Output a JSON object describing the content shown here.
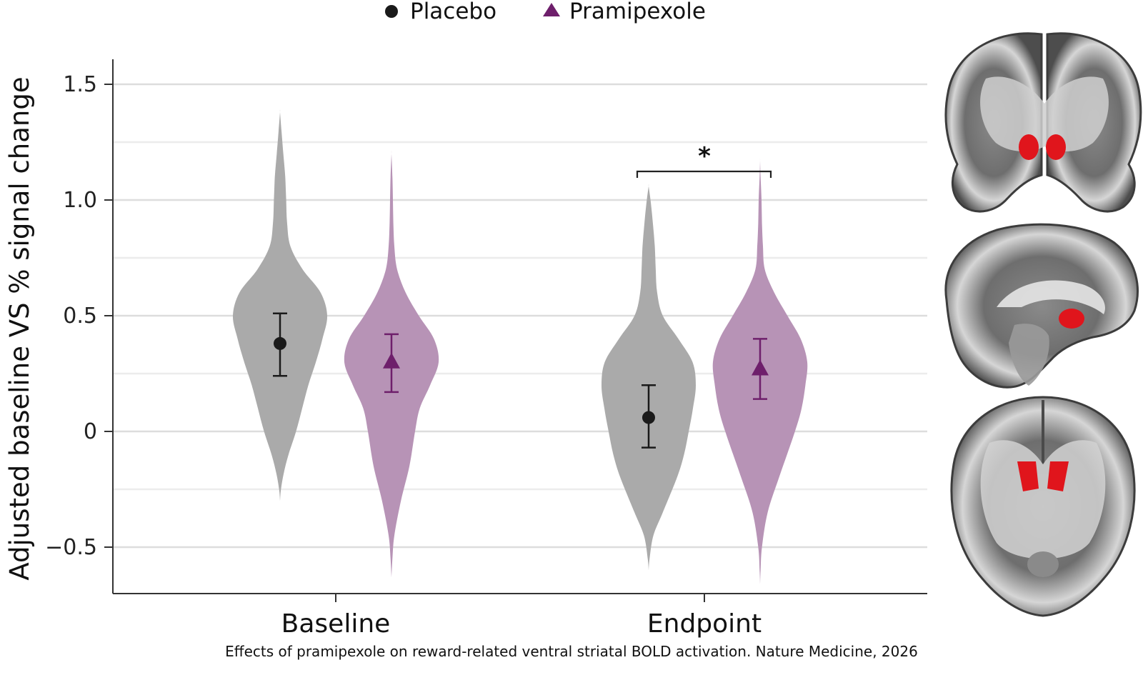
{
  "chart_data": {
    "type": "violin",
    "legend": {
      "position": "top-center",
      "items": [
        {
          "label": "Placebo",
          "marker": "circle",
          "color": "#1a1a1a"
        },
        {
          "label": "Pramipexole",
          "marker": "triangle",
          "color": "#6e1f6b"
        }
      ]
    },
    "ylabel": "Adjusted baseline VS % signal change",
    "ylim": [
      -0.68,
      1.6
    ],
    "yticks": [
      {
        "value": 1.5,
        "label": "1.5"
      },
      {
        "value": 1.0,
        "label": "1.0"
      },
      {
        "value": 0.5,
        "label": "0.5"
      },
      {
        "value": 0,
        "label": "0"
      },
      {
        "value": -0.5,
        "label": "−0.5"
      }
    ],
    "grid": true,
    "categories": [
      "Baseline",
      "Endpoint"
    ],
    "series": [
      {
        "name": "Placebo",
        "fill": "#aaaaaa",
        "marker": "circle",
        "marker_color": "#1a1a1a",
        "groups": [
          {
            "category": "Baseline",
            "mean": 0.38,
            "ci": [
              0.24,
              0.51
            ],
            "density": [
              [
                -0.3,
                0.0
              ],
              [
                -0.25,
                0.02
              ],
              [
                -0.18,
                0.08
              ],
              [
                -0.1,
                0.18
              ],
              [
                0.0,
                0.34
              ],
              [
                0.1,
                0.47
              ],
              [
                0.2,
                0.6
              ],
              [
                0.3,
                0.76
              ],
              [
                0.4,
                0.9
              ],
              [
                0.5,
                1.0
              ],
              [
                0.6,
                0.86
              ],
              [
                0.7,
                0.48
              ],
              [
                0.8,
                0.22
              ],
              [
                0.9,
                0.15
              ],
              [
                1.0,
                0.13
              ],
              [
                1.1,
                0.11
              ],
              [
                1.2,
                0.07
              ],
              [
                1.3,
                0.03
              ],
              [
                1.38,
                0.0
              ]
            ]
          },
          {
            "category": "Endpoint",
            "mean": 0.06,
            "ci": [
              -0.07,
              0.2
            ],
            "density": [
              [
                -0.6,
                0.0
              ],
              [
                -0.55,
                0.02
              ],
              [
                -0.45,
                0.1
              ],
              [
                -0.35,
                0.3
              ],
              [
                -0.2,
                0.6
              ],
              [
                -0.1,
                0.75
              ],
              [
                0.0,
                0.85
              ],
              [
                0.1,
                0.94
              ],
              [
                0.2,
                1.0
              ],
              [
                0.3,
                0.93
              ],
              [
                0.4,
                0.63
              ],
              [
                0.5,
                0.3
              ],
              [
                0.6,
                0.18
              ],
              [
                0.7,
                0.15
              ],
              [
                0.8,
                0.13
              ],
              [
                0.9,
                0.09
              ],
              [
                1.0,
                0.04
              ],
              [
                1.06,
                0.0
              ]
            ]
          }
        ]
      },
      {
        "name": "Pramipexole",
        "fill": "#b793b6",
        "marker": "triangle",
        "marker_color": "#6e1f6b",
        "groups": [
          {
            "category": "Baseline",
            "mean": 0.3,
            "ci": [
              0.17,
              0.42
            ],
            "density": [
              [
                -0.63,
                0.0
              ],
              [
                -0.55,
                0.02
              ],
              [
                -0.45,
                0.06
              ],
              [
                -0.3,
                0.2
              ],
              [
                -0.15,
                0.38
              ],
              [
                0.0,
                0.5
              ],
              [
                0.1,
                0.6
              ],
              [
                0.2,
                0.82
              ],
              [
                0.3,
                1.0
              ],
              [
                0.4,
                0.9
              ],
              [
                0.5,
                0.58
              ],
              [
                0.6,
                0.3
              ],
              [
                0.7,
                0.12
              ],
              [
                0.8,
                0.06
              ],
              [
                0.9,
                0.04
              ],
              [
                1.0,
                0.03
              ],
              [
                1.1,
                0.02
              ],
              [
                1.2,
                0.0
              ]
            ]
          },
          {
            "category": "Endpoint",
            "mean": 0.27,
            "ci": [
              0.14,
              0.4
            ],
            "density": [
              [
                -0.66,
                0.0
              ],
              [
                -0.6,
                0.01
              ],
              [
                -0.5,
                0.04
              ],
              [
                -0.35,
                0.16
              ],
              [
                -0.2,
                0.4
              ],
              [
                0.0,
                0.74
              ],
              [
                0.1,
                0.88
              ],
              [
                0.2,
                0.96
              ],
              [
                0.3,
                1.0
              ],
              [
                0.4,
                0.86
              ],
              [
                0.5,
                0.58
              ],
              [
                0.6,
                0.3
              ],
              [
                0.7,
                0.1
              ],
              [
                0.8,
                0.06
              ],
              [
                0.9,
                0.04
              ],
              [
                1.0,
                0.03
              ],
              [
                1.1,
                0.01
              ],
              [
                1.17,
                0.0
              ]
            ]
          }
        ]
      }
    ],
    "annotations": [
      {
        "text": "*",
        "category": "Endpoint",
        "type": "significance-bracket"
      }
    ]
  },
  "caption": "Effects of pramipexole on reward-related ventral striatal BOLD activation. Nature Medicine, 2026",
  "brain_images": [
    {
      "view": "coronal",
      "highlight_color": "#e0151c"
    },
    {
      "view": "sagittal",
      "highlight_color": "#e0151c"
    },
    {
      "view": "axial",
      "highlight_color": "#e0151c"
    }
  ]
}
